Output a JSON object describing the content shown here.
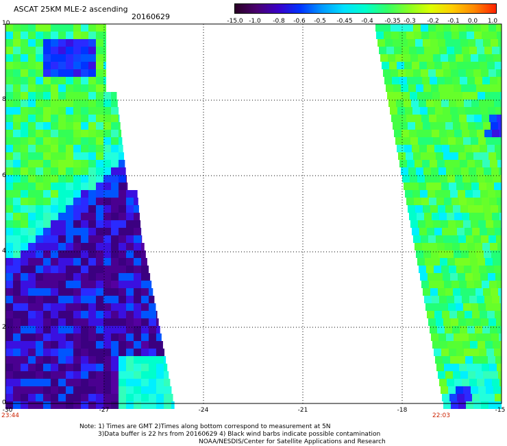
{
  "header": {
    "title": "ASCAT 25KM MLE-2 ascending",
    "date": "20160629"
  },
  "colorbar": {
    "labels": [
      "-15.0",
      "-1.0",
      "-0.8",
      "-0.6",
      "-0.5",
      "-0.45",
      "-0.4",
      "-0.35",
      "-0.3",
      "-0.2",
      "-0.1",
      "0.0",
      "1.0"
    ],
    "colors": [
      "#2a0025",
      "#4a0070",
      "#3a00c8",
      "#0033ff",
      "#0099ff",
      "#00e0ff",
      "#00ffcc",
      "#33ff66",
      "#88ff22",
      "#ddff00",
      "#ffcc00",
      "#ff8800",
      "#ff2200"
    ]
  },
  "axes": {
    "x_ticks": [
      "-30",
      "-27",
      "-24",
      "-21",
      "-18",
      "-15"
    ],
    "y_ticks": [
      "0",
      "2",
      "4",
      "6",
      "8",
      "10"
    ],
    "time_left": "23:44",
    "time_right": "22:03"
  },
  "footer": {
    "line1": "Note: 1) Times are GMT 2)Times along bottom correspond to measurement at 5N",
    "line2": "3)Data buffer is 22 hrs from 20160629 4) Black wind barbs indicate possible contamination",
    "line3": "NOAA/NESDIS/Center for Satellite Applications and Research"
  }
}
